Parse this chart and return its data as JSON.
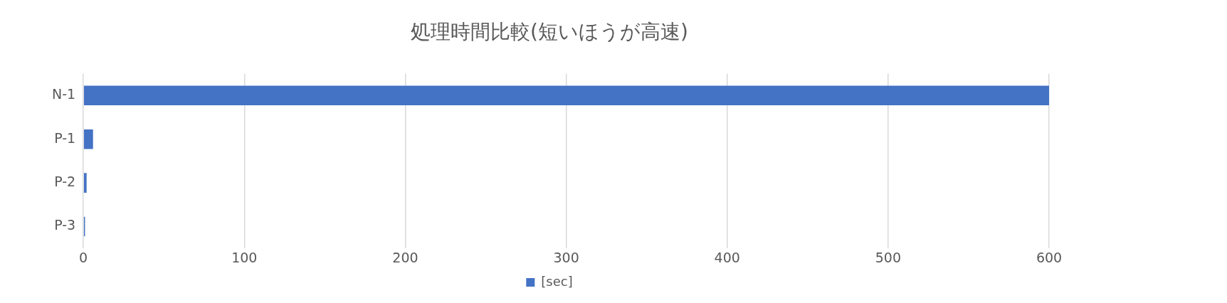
{
  "chart_data": {
    "type": "bar",
    "orientation": "horizontal",
    "title": "処理時間比較(短いほうが高速)",
    "categories": [
      "N-1",
      "P-1",
      "P-2",
      "P-3"
    ],
    "series": [
      {
        "name": "[sec]",
        "color": "#4472c4",
        "values": [
          600,
          6,
          2,
          1
        ]
      }
    ],
    "xlim": [
      0,
      600
    ],
    "xticks": [
      0,
      100,
      200,
      300,
      400,
      500,
      600
    ],
    "grid": "x",
    "legend": "bottom"
  }
}
